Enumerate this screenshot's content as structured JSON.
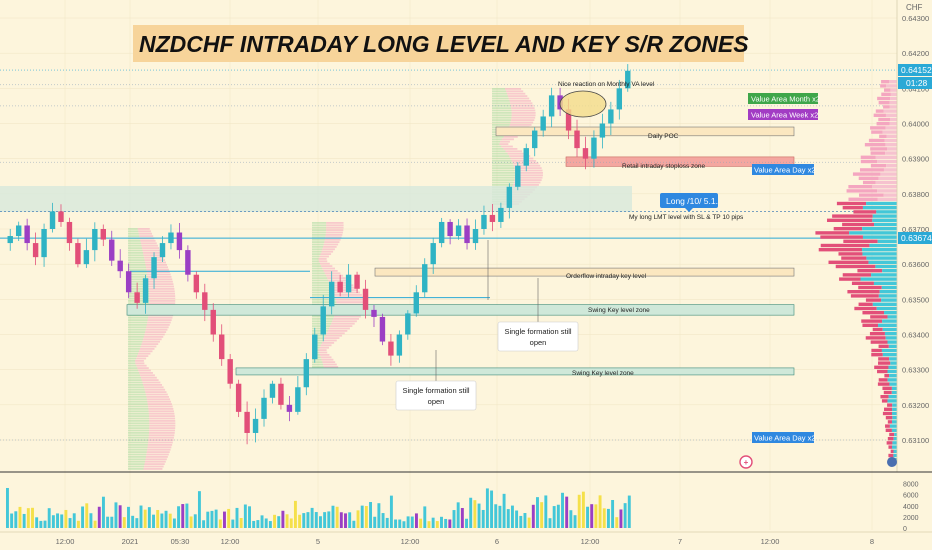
{
  "title": "NZDCHF INTRADAY LONG LEVEL AND KEY S/R ZONES",
  "currency": "CHF",
  "colors": {
    "background": "#fdf5dc",
    "title_box": "#f7d49a",
    "candle_up": "#2fb3c4",
    "candle_down": "#e24f79",
    "candle_purple": "#9b3fc4",
    "zone_fill": "#cfe8d9",
    "zone_stroke": "#3a8a7a",
    "orderflow_fill": "#fbe7c0",
    "retail_fill": "#f4a6a0",
    "label_blue": "#2f88e0",
    "label_green": "#3fa64a",
    "label_purple": "#a23cc4",
    "price_cyan": "#2aa9d6",
    "volume_up": "#43c7d8",
    "volume_hi": "#f5e04a"
  },
  "price_badges": {
    "last": "0.64152",
    "countdown": "01:28",
    "current": "0.63674"
  },
  "value_area_labels": [
    {
      "text": "Value Area Month x2",
      "price": 0.6411,
      "color": "green"
    },
    {
      "text": "Value Area Week x2",
      "price": 0.6405,
      "color": "purple"
    },
    {
      "text": "Value Area Day x2",
      "price": 0.6389,
      "color": "blue"
    },
    {
      "text": "Value Area Day x2",
      "price": 0.631,
      "color": "blue"
    }
  ],
  "zones": [
    {
      "label": "Daily POC",
      "type": "orderflow"
    },
    {
      "label": "Retail intraday stoploss zone",
      "type": "retail"
    },
    {
      "label": "Orderflow intraday key level",
      "type": "orderflow"
    },
    {
      "label": "Swing Key level zone",
      "type": "swing"
    },
    {
      "label": "Swing Key level zone",
      "type": "swing"
    }
  ],
  "annotations": {
    "monthly_reaction": "Nice reaction on Monthly VA level",
    "long_label": "Long /10/ 5.1.",
    "long_note": "My long LMT level with SL & TP 10 pips",
    "single_formation_1": [
      "Single formation still",
      "open"
    ],
    "single_formation_2": [
      "Single formation still",
      "open"
    ]
  },
  "chart_data": {
    "type": "candlestick",
    "title": "NZDCHF INTRADAY LONG LEVEL AND KEY S/R ZONES",
    "symbol": "NZDCHF",
    "price_axis": {
      "ylim": [
        0.6305,
        0.6436
      ],
      "ticks": [
        "0.64300",
        "0.64200",
        "0.64100",
        "0.64000",
        "0.63900",
        "0.63800",
        "0.63700",
        "0.63600",
        "0.63500",
        "0.63400",
        "0.63300",
        "0.63200",
        "0.63100"
      ]
    },
    "volume_axis": {
      "ylim": [
        0,
        9000
      ],
      "ticks": [
        "8000",
        "6000",
        "4000",
        "2000",
        "0"
      ]
    },
    "time_axis": {
      "ticks": [
        "12:00",
        "2021",
        "05:30",
        "12:00",
        "5",
        "12:00",
        "6",
        "12:00",
        "7",
        "12:00",
        "8"
      ]
    },
    "key_prices": {
      "last": 0.64152,
      "current": 0.63674,
      "long_entry": 0.6375
    },
    "zones": [
      {
        "label": "Daily POC",
        "from": 0.63965,
        "to": 0.6399
      },
      {
        "label": "Retail intraday stoploss zone",
        "from": 0.63878,
        "to": 0.63905
      },
      {
        "label": "Orderflow intraday key level",
        "from": 0.6357,
        "to": 0.63585
      },
      {
        "label": "Swing Key level zone",
        "from": 0.63455,
        "to": 0.63485
      },
      {
        "label": "Swing Key level zone",
        "from": 0.63285,
        "to": 0.63305
      }
    ],
    "candles_sampled_close": [
      0.6368,
      0.6371,
      0.6366,
      0.6362,
      0.637,
      0.6375,
      0.6372,
      0.6366,
      0.636,
      0.6364,
      0.637,
      0.6367,
      0.6361,
      0.6358,
      0.6352,
      0.6349,
      0.6356,
      0.6362,
      0.6366,
      0.6369,
      0.6364,
      0.6357,
      0.6352,
      0.6347,
      0.634,
      0.6333,
      0.6326,
      0.6318,
      0.6312,
      0.6316,
      0.6322,
      0.6326,
      0.632,
      0.6318,
      0.6325,
      0.6333,
      0.634,
      0.6348,
      0.6355,
      0.6352,
      0.6357,
      0.6353,
      0.6347,
      0.6345,
      0.6338,
      0.6334,
      0.634,
      0.6346,
      0.6352,
      0.636,
      0.6366,
      0.6372,
      0.6368,
      0.6371,
      0.6366,
      0.637,
      0.6374,
      0.6372,
      0.6376,
      0.6382,
      0.6388,
      0.6393,
      0.6398,
      0.6402,
      0.6408,
      0.6404,
      0.6398,
      0.6393,
      0.639,
      0.6396,
      0.64,
      0.6404,
      0.641,
      0.6415
    ]
  }
}
